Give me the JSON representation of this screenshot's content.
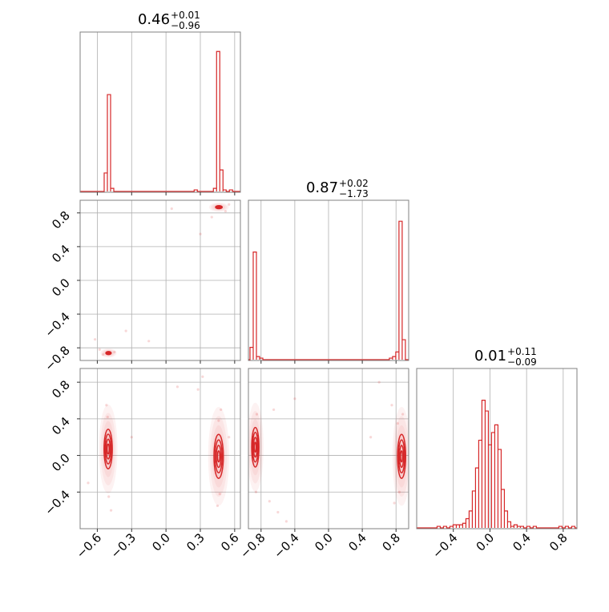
{
  "chart_data": {
    "type": "corner",
    "color": "#d62728",
    "grid": true,
    "parameters": [
      {
        "title": {
          "value": "0.46",
          "upper": "+0.01",
          "lower": "−0.96"
        },
        "range": [
          -0.75,
          0.65
        ],
        "ticks": [
          -0.6,
          -0.3,
          0.0,
          0.3,
          0.6
        ],
        "tick_labels": [
          "−0.6",
          "−0.3",
          "0.0",
          "0.3",
          "0.6"
        ],
        "histogram": {
          "bin_width": 0.028,
          "bins": [
            {
              "x": -0.526,
              "h": 0.12
            },
            {
              "x": -0.498,
              "h": 0.63
            },
            {
              "x": -0.47,
              "h": 0.02
            },
            {
              "x": 0.26,
              "h": 0.01
            },
            {
              "x": 0.428,
              "h": 0.02
            },
            {
              "x": 0.456,
              "h": 0.91
            },
            {
              "x": 0.484,
              "h": 0.14
            },
            {
              "x": 0.512,
              "h": 0.01
            },
            {
              "x": 0.568,
              "h": 0.01
            }
          ]
        }
      },
      {
        "title": {
          "value": "0.87",
          "upper": "+0.02",
          "lower": "−1.73"
        },
        "range": [
          -0.95,
          0.95
        ],
        "ticks": [
          -0.8,
          -0.4,
          0.0,
          0.4,
          0.8
        ],
        "tick_labels": [
          "−0.8",
          "−0.4",
          "0.0",
          "0.4",
          "0.8"
        ],
        "histogram": {
          "bin_width": 0.038,
          "bins": [
            {
              "x": -0.912,
              "h": 0.08
            },
            {
              "x": -0.874,
              "h": 0.7
            },
            {
              "x": -0.836,
              "h": 0.02
            },
            {
              "x": -0.798,
              "h": 0.01
            },
            {
              "x": 0.74,
              "h": 0.01
            },
            {
              "x": 0.778,
              "h": 0.02
            },
            {
              "x": 0.816,
              "h": 0.05
            },
            {
              "x": 0.854,
              "h": 0.9
            },
            {
              "x": 0.892,
              "h": 0.13
            }
          ]
        }
      },
      {
        "title": {
          "value": "0.01",
          "upper": "+0.11",
          "lower": "−0.09"
        },
        "range": [
          -0.8,
          0.95
        ],
        "ticks": [
          -0.4,
          0.0,
          0.4,
          0.8
        ],
        "tick_labels": [
          "−0.4",
          "0.0",
          "0.4",
          "0.8"
        ],
        "histogram": {
          "bin_width": 0.035,
          "bins": [
            {
              "x": -0.56,
              "h": 0.01
            },
            {
              "x": -0.49,
              "h": 0.01
            },
            {
              "x": -0.42,
              "h": 0.01
            },
            {
              "x": -0.385,
              "h": 0.02
            },
            {
              "x": -0.35,
              "h": 0.02
            },
            {
              "x": -0.315,
              "h": 0.02
            },
            {
              "x": -0.28,
              "h": 0.03
            },
            {
              "x": -0.245,
              "h": 0.06
            },
            {
              "x": -0.21,
              "h": 0.11
            },
            {
              "x": -0.175,
              "h": 0.24
            },
            {
              "x": -0.14,
              "h": 0.39
            },
            {
              "x": -0.105,
              "h": 0.57
            },
            {
              "x": -0.07,
              "h": 0.83
            },
            {
              "x": -0.035,
              "h": 0.76
            },
            {
              "x": 0.0,
              "h": 0.54
            },
            {
              "x": 0.035,
              "h": 0.62
            },
            {
              "x": 0.07,
              "h": 0.67
            },
            {
              "x": 0.105,
              "h": 0.51
            },
            {
              "x": 0.14,
              "h": 0.25
            },
            {
              "x": 0.175,
              "h": 0.11
            },
            {
              "x": 0.21,
              "h": 0.04
            },
            {
              "x": 0.245,
              "h": 0.01
            },
            {
              "x": 0.28,
              "h": 0.02
            },
            {
              "x": 0.315,
              "h": 0.01
            },
            {
              "x": 0.35,
              "h": 0.01
            },
            {
              "x": 0.42,
              "h": 0.01
            },
            {
              "x": 0.49,
              "h": 0.01
            },
            {
              "x": 0.77,
              "h": 0.01
            },
            {
              "x": 0.84,
              "h": 0.01
            },
            {
              "x": 0.91,
              "h": 0.01
            }
          ]
        }
      }
    ],
    "pairs": [
      {
        "row": 1,
        "col": 0,
        "modes": [
          {
            "x": 0.462,
            "y": 0.868,
            "sx": 0.016,
            "sy": 0.01,
            "contour_levels": 3
          },
          {
            "x": -0.502,
            "y": -0.862,
            "sx": 0.013,
            "sy": 0.01,
            "contour_levels": 3
          }
        ],
        "scatter": [
          {
            "x": -0.58,
            "y": -0.82
          },
          {
            "x": -0.55,
            "y": -0.88
          },
          {
            "x": -0.45,
            "y": -0.85
          },
          {
            "x": -0.35,
            "y": -0.6
          },
          {
            "x": -0.15,
            "y": -0.72
          },
          {
            "x": 0.05,
            "y": 0.85
          },
          {
            "x": 0.4,
            "y": 0.75
          },
          {
            "x": 0.52,
            "y": 0.82
          },
          {
            "x": 0.55,
            "y": 0.9
          },
          {
            "x": 0.3,
            "y": 0.55
          },
          {
            "x": -0.62,
            "y": -0.7
          }
        ]
      },
      {
        "row": 2,
        "col": 0,
        "modes": [
          {
            "x": -0.505,
            "y": 0.07,
            "sx": 0.015,
            "sy": 0.09,
            "contour_levels": 4
          },
          {
            "x": 0.46,
            "y": -0.01,
            "sx": 0.017,
            "sy": 0.1,
            "contour_levels": 4
          }
        ],
        "scatter": [
          {
            "x": -0.51,
            "y": 0.42
          },
          {
            "x": -0.5,
            "y": -0.45
          },
          {
            "x": -0.52,
            "y": 0.55
          },
          {
            "x": -0.48,
            "y": -0.6
          },
          {
            "x": 0.46,
            "y": 0.38
          },
          {
            "x": 0.47,
            "y": -0.42
          },
          {
            "x": 0.45,
            "y": -0.55
          },
          {
            "x": 0.48,
            "y": 0.5
          },
          {
            "x": 0.28,
            "y": 0.72
          },
          {
            "x": -0.3,
            "y": 0.2
          },
          {
            "x": 0.1,
            "y": 0.75
          },
          {
            "x": 0.55,
            "y": 0.2
          },
          {
            "x": -0.68,
            "y": -0.3
          },
          {
            "x": 0.32,
            "y": 0.86
          }
        ]
      },
      {
        "row": 2,
        "col": 1,
        "modes": [
          {
            "x": -0.868,
            "y": 0.09,
            "sx": 0.018,
            "sy": 0.09,
            "contour_levels": 4
          },
          {
            "x": 0.866,
            "y": -0.01,
            "sx": 0.02,
            "sy": 0.1,
            "contour_levels": 4
          }
        ],
        "scatter": [
          {
            "x": -0.85,
            "y": 0.45
          },
          {
            "x": -0.86,
            "y": -0.4
          },
          {
            "x": -0.7,
            "y": -0.5
          },
          {
            "x": -0.6,
            "y": -0.62
          },
          {
            "x": -0.5,
            "y": -0.72
          },
          {
            "x": -0.4,
            "y": 0.62
          },
          {
            "x": -0.65,
            "y": 0.5
          },
          {
            "x": 0.6,
            "y": 0.8
          },
          {
            "x": 0.75,
            "y": 0.55
          },
          {
            "x": 0.82,
            "y": 0.35
          },
          {
            "x": 0.84,
            "y": -0.4
          },
          {
            "x": 0.78,
            "y": -0.52
          },
          {
            "x": 0.88,
            "y": 0.45
          },
          {
            "x": 0.5,
            "y": 0.2
          }
        ]
      }
    ]
  }
}
